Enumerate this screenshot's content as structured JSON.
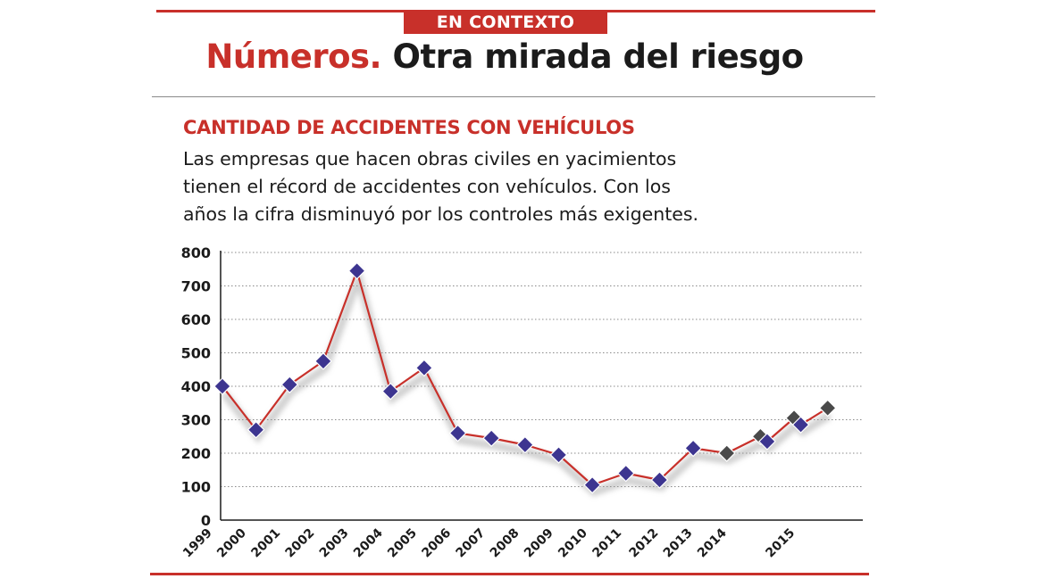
{
  "header": {
    "kicker": "EN CONTEXTO",
    "headline_red": "Números.",
    "headline_rest": "Otra mirada del riesgo"
  },
  "colors": {
    "accent": "#c8302a",
    "marker": "#3d3590",
    "marker_gray": "#4a4a4a",
    "text": "#1b1b1b"
  },
  "chart_data": {
    "type": "line",
    "title": "CANTIDAD DE ACCIDENTES CON VEHÍCULOS",
    "description": "Las empresas que hacen obras civiles en yacimientos tienen el récord de accidentes con vehículos. Con los años la cifra disminuyó por los controles más exigentes.",
    "xlabel": "",
    "ylabel": "",
    "ylim": [
      0,
      800
    ],
    "yticks": [
      0,
      100,
      200,
      300,
      400,
      500,
      600,
      700,
      800
    ],
    "grid": true,
    "x_labels": [
      "1999",
      "2000",
      "2001",
      "2002",
      "2003",
      "2004",
      "2005",
      "2006",
      "2007",
      "2008",
      "2009",
      "2010",
      "2011",
      "2012",
      "2013",
      "2014",
      "2015"
    ],
    "points": [
      {
        "x": 0,
        "y": 400,
        "style": "blue"
      },
      {
        "x": 1,
        "y": 270,
        "style": "blue"
      },
      {
        "x": 2,
        "y": 405,
        "style": "blue"
      },
      {
        "x": 3,
        "y": 475,
        "style": "blue"
      },
      {
        "x": 4,
        "y": 745,
        "style": "blue"
      },
      {
        "x": 5,
        "y": 385,
        "style": "blue"
      },
      {
        "x": 6,
        "y": 455,
        "style": "blue"
      },
      {
        "x": 7,
        "y": 260,
        "style": "blue"
      },
      {
        "x": 8,
        "y": 245,
        "style": "blue"
      },
      {
        "x": 9,
        "y": 225,
        "style": "blue"
      },
      {
        "x": 10,
        "y": 195,
        "style": "blue"
      },
      {
        "x": 11,
        "y": 105,
        "style": "blue"
      },
      {
        "x": 12,
        "y": 140,
        "style": "blue"
      },
      {
        "x": 13,
        "y": 120,
        "style": "blue"
      },
      {
        "x": 14,
        "y": 215,
        "style": "blue"
      },
      {
        "x": 15,
        "y": 200,
        "style": "gray"
      },
      {
        "x": 16,
        "y": 250,
        "style": "gray"
      },
      {
        "x": 16.2,
        "y": 235,
        "style": "blue"
      },
      {
        "x": 17,
        "y": 305,
        "style": "gray"
      },
      {
        "x": 17.2,
        "y": 285,
        "style": "blue"
      },
      {
        "x": 18,
        "y": 335,
        "style": "gray"
      }
    ]
  }
}
